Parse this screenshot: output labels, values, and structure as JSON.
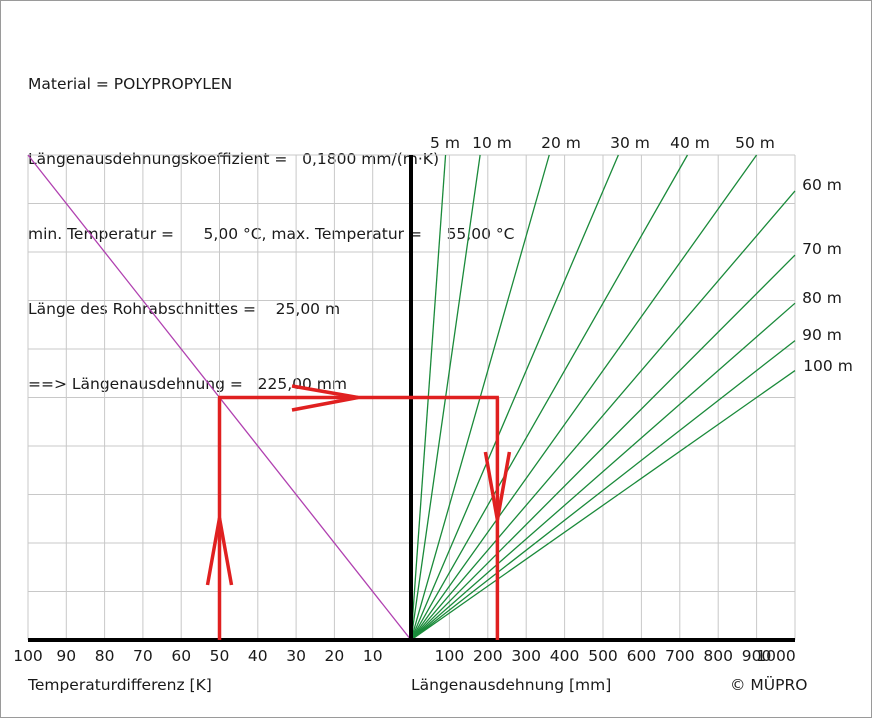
{
  "info_lines": [
    "Material = POLYPROPYLEN",
    "Längenausdehnungskoeffizient =   0,1800 mm/(m·K)",
    "min. Temperatur =      5,00 °C, max. Temperatur =     55,00 °C",
    "Länge des Rohrabschnittes =    25,00 m",
    "==> Längenausdehnung =   225,00 mm"
  ],
  "copyright": "© MÜPRO",
  "chart_data": {
    "type": "line",
    "left_panel": {
      "xlabel": "Temperaturdifferenz [K]",
      "x_ticks": [
        "100",
        "90",
        "80",
        "70",
        "60",
        "50",
        "40",
        "30",
        "20",
        "10"
      ],
      "x_range": [
        100,
        0
      ],
      "direction": "reversed"
    },
    "right_panel": {
      "xlabel": "Längenausdehnung [mm]",
      "x_ticks": [
        "100",
        "200",
        "300",
        "400",
        "500",
        "600",
        "700",
        "800",
        "900",
        "1000"
      ],
      "x_range": [
        0,
        1000
      ]
    },
    "y_range": [
      0,
      100
    ],
    "grid": true,
    "pipe_lengths": [
      {
        "label": "5 m",
        "length": 5
      },
      {
        "label": "10 m",
        "length": 10
      },
      {
        "label": "20 m",
        "length": 20
      },
      {
        "label": "30 m",
        "length": 30
      },
      {
        "label": "40 m",
        "length": 40
      },
      {
        "label": "50 m",
        "length": 50
      },
      {
        "label": "60 m",
        "length": 60
      },
      {
        "label": "70 m",
        "length": 70
      },
      {
        "label": "80 m",
        "length": 80
      },
      {
        "label": "90 m",
        "length": 90
      },
      {
        "label": "100 m",
        "length": 100
      }
    ],
    "coefficient": 0.18,
    "reading": {
      "temperature_difference": 50,
      "pipe_length": 25,
      "expansion": 225
    },
    "colors": {
      "grid": "#c8c8c8",
      "axis": "#000000",
      "diagonal": "#b040b0",
      "lines": "#1a8a3a",
      "reading": "#e02020"
    }
  }
}
